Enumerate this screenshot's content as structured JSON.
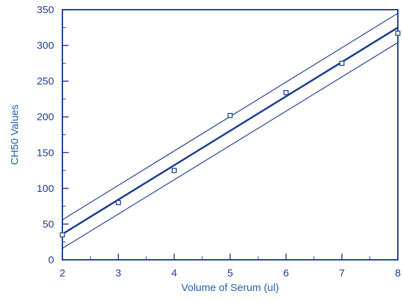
{
  "chart_data": {
    "type": "scatter",
    "title": "",
    "xlabel": "Volume of Serum (ul)",
    "ylabel": "CH50 Values",
    "xlim": [
      2,
      8
    ],
    "ylim": [
      0,
      350
    ],
    "x_ticks": [
      2,
      3,
      4,
      5,
      6,
      7,
      8
    ],
    "y_ticks": [
      0,
      50,
      100,
      150,
      200,
      250,
      300,
      350
    ],
    "grid": false,
    "series": [
      {
        "kind": "scatter",
        "marker": "open-square",
        "x": [
          2,
          3,
          4,
          5,
          6,
          7,
          8
        ],
        "y": [
          35,
          80,
          125,
          202,
          234,
          275,
          317
        ]
      },
      {
        "kind": "line",
        "role": "fit",
        "x": [
          2,
          8
        ],
        "y": [
          36,
          325
        ]
      },
      {
        "kind": "line",
        "role": "upper-bound",
        "x": [
          2,
          8
        ],
        "y": [
          56,
          345
        ]
      },
      {
        "kind": "line",
        "role": "lower-bound",
        "x": [
          2,
          8
        ],
        "y": [
          16,
          304
        ]
      }
    ],
    "colors": {
      "axis": "#1f3f8f",
      "data": "#1a3c8c",
      "label": "#1f5fa8"
    }
  }
}
